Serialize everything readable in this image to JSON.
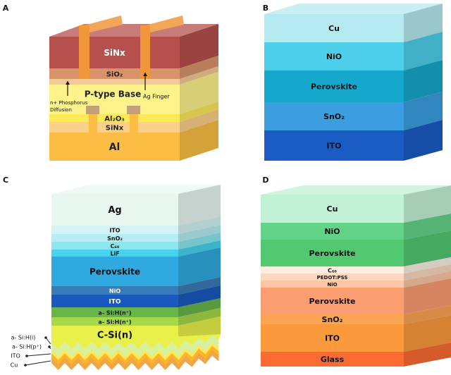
{
  "panels": {
    "A": {
      "letter": "A",
      "layers": [
        {
          "label": "SiNx",
          "color": "#b5504d",
          "text": "#ffffff"
        },
        {
          "label": "SiO₂",
          "color": "#d9936a",
          "text": "#222222"
        },
        {
          "label": "",
          "color": "#f3c995",
          "text": "#222222"
        },
        {
          "label": "P-type Base",
          "color": "#fdf38a",
          "text": "#222222"
        },
        {
          "label": "Al₂O₃",
          "color": "#fde85a",
          "text": "#222222"
        },
        {
          "label": "SiNx",
          "color": "#fbd08a",
          "text": "#222222"
        },
        {
          "label": "Al",
          "color": "#fbbd43",
          "text": "#222222"
        }
      ],
      "annotations": {
        "phosphorus_line1": "n+ Phosphorus",
        "phosphorus_line2": "Diffusion",
        "finger": "Ag Finger"
      },
      "finger_color": "#f0973a",
      "pad_color": "#c2a07a"
    },
    "B": {
      "letter": "B",
      "layers": [
        {
          "label": "Cu",
          "color": "#b5eaf0",
          "text": "#111111"
        },
        {
          "label": "NiO",
          "color": "#4dcfe9",
          "text": "#111111"
        },
        {
          "label": "Perovskite",
          "color": "#16a8cc",
          "text": "#111111"
        },
        {
          "label": "SnO₂",
          "color": "#3a9ee0",
          "text": "#111111"
        },
        {
          "label": "ITO",
          "color": "#1a5cc4",
          "text": "#111111"
        }
      ]
    },
    "C": {
      "letter": "C",
      "layers": [
        {
          "label": "Ag",
          "color": "#e9f7f1",
          "text": "#111111"
        },
        {
          "label": "ITO",
          "color": "#d4f3f4",
          "text": "#111111"
        },
        {
          "label": "SnO₂",
          "color": "#b4eef2",
          "text": "#111111"
        },
        {
          "label": "C₆₀",
          "color": "#8ce6ee",
          "text": "#111111"
        },
        {
          "label": "LiF",
          "color": "#48d3ec",
          "text": "#111111"
        },
        {
          "label": "Perovskite",
          "color": "#30a9e0",
          "text": "#111111"
        },
        {
          "label": "NiO",
          "color": "#3a7cb8",
          "text": "#ffffff"
        },
        {
          "label": "ITO",
          "color": "#1959bd",
          "text": "#ffffff"
        },
        {
          "label": "a- Si:H(n⁺)",
          "color": "#68b54a",
          "text": "#111111"
        },
        {
          "label": "a- Si:H(n⁺)",
          "color": "#a6d94a",
          "text": "#111111"
        },
        {
          "label": "C-Si(n)",
          "color": "#e8f049",
          "text": "#111111"
        }
      ],
      "back_layers": [
        {
          "label": "a- Si:H(i)",
          "color": "#d7f0a0"
        },
        {
          "label": "a- Si:H(p⁺)",
          "color": "#fde85a"
        },
        {
          "label": "ITO",
          "color": "#fbb526"
        },
        {
          "label": "Cu",
          "color": "#eda748"
        }
      ]
    },
    "D": {
      "letter": "D",
      "layers": [
        {
          "label": "Cu",
          "color": "#c3f1d6",
          "text": "#111111"
        },
        {
          "label": "NiO",
          "color": "#64d38a",
          "text": "#111111"
        },
        {
          "label": "Perovskite",
          "color": "#52c971",
          "text": "#111111"
        },
        {
          "label": "C₆₀",
          "color": "#fcefe2",
          "text": "#111111"
        },
        {
          "label": "PEDOT:PSS",
          "color": "#fbd9c0",
          "text": "#111111"
        },
        {
          "label": "NiO",
          "color": "#fbc7a4",
          "text": "#111111"
        },
        {
          "label": "Perovskite",
          "color": "#fb9e72",
          "text": "#111111"
        },
        {
          "label": "SnO₂",
          "color": "#fba552",
          "text": "#111111"
        },
        {
          "label": "ITO",
          "color": "#fb9a3c",
          "text": "#111111"
        },
        {
          "label": "Glass",
          "color": "#fb6b34",
          "text": "#111111"
        }
      ]
    }
  }
}
